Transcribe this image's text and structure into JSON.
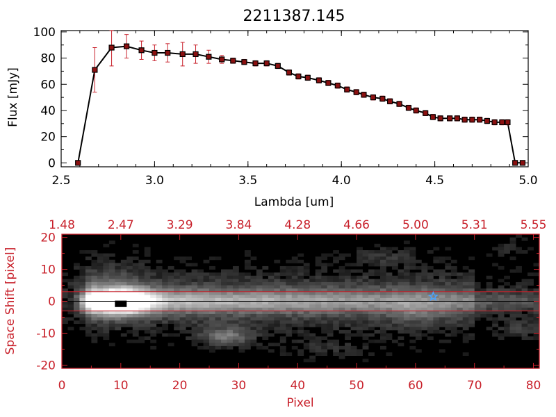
{
  "chart_data": [
    {
      "type": "line",
      "title": "2211387.145",
      "xlabel": "Lambda [um]",
      "ylabel": "Flux [mJy]",
      "xlim": [
        2.5,
        5.0
      ],
      "ylim": [
        -3,
        101
      ],
      "xticks": [
        "2.5",
        "3.0",
        "3.5",
        "4.0",
        "4.5",
        "5.0"
      ],
      "yticks": [
        "0",
        "20",
        "40",
        "60",
        "80",
        "100"
      ],
      "line_color": "#000000",
      "marker_color": "#8b1010",
      "errorbar_color": "#c8202a",
      "x": [
        2.59,
        2.68,
        2.77,
        2.85,
        2.93,
        3.0,
        3.07,
        3.15,
        3.22,
        3.29,
        3.36,
        3.42,
        3.48,
        3.54,
        3.6,
        3.66,
        3.72,
        3.77,
        3.82,
        3.88,
        3.93,
        3.98,
        4.03,
        4.08,
        4.12,
        4.17,
        4.22,
        4.26,
        4.31,
        4.36,
        4.4,
        4.45,
        4.49,
        4.53,
        4.58,
        4.62,
        4.66,
        4.7,
        4.74,
        4.78,
        4.82,
        4.86,
        4.89,
        4.93,
        4.97
      ],
      "y": [
        0,
        71,
        88,
        89,
        86,
        84,
        84,
        83,
        83,
        81,
        79,
        78,
        77,
        76,
        76,
        74,
        69,
        66,
        65,
        63,
        61,
        59,
        56,
        54,
        52,
        50,
        49,
        47,
        45,
        42,
        40,
        38,
        35,
        34,
        34,
        34,
        33,
        33,
        33,
        32,
        31,
        31,
        31,
        0,
        0
      ],
      "yerr": [
        0,
        17,
        14,
        9,
        7,
        6,
        7,
        9,
        7,
        5,
        3,
        2,
        2,
        2,
        2,
        2,
        2,
        2,
        2,
        2,
        2,
        2,
        2,
        2,
        2,
        2,
        2,
        2,
        2,
        2,
        2,
        2,
        2,
        2,
        2,
        2,
        2,
        2,
        2,
        2,
        2,
        2,
        2,
        0,
        0
      ]
    },
    {
      "type": "heatmap",
      "xlabel": "Pixel",
      "ylabel": "Space Shift [pixel]",
      "xlim": [
        0,
        81
      ],
      "ylim": [
        -21,
        21
      ],
      "xticks": [
        "0",
        "10",
        "20",
        "30",
        "40",
        "50",
        "60",
        "70",
        "80"
      ],
      "yticks": [
        "-20",
        "-10",
        "0",
        "10",
        "20"
      ],
      "top_ticks": [
        "1.48",
        "2.47",
        "3.29",
        "3.84",
        "4.28",
        "4.66",
        "5.00",
        "5.31",
        "5.55"
      ],
      "axis_color": "#c8202a",
      "trace_color": "#000000",
      "extraction_lines": [
        3,
        -3
      ],
      "star_color": "#4aa3ff",
      "star_x": 63,
      "star_y": 1.5,
      "black_block": {
        "x": [
          9.0,
          11.0
        ],
        "y": [
          -1.8,
          0.2
        ]
      }
    }
  ]
}
